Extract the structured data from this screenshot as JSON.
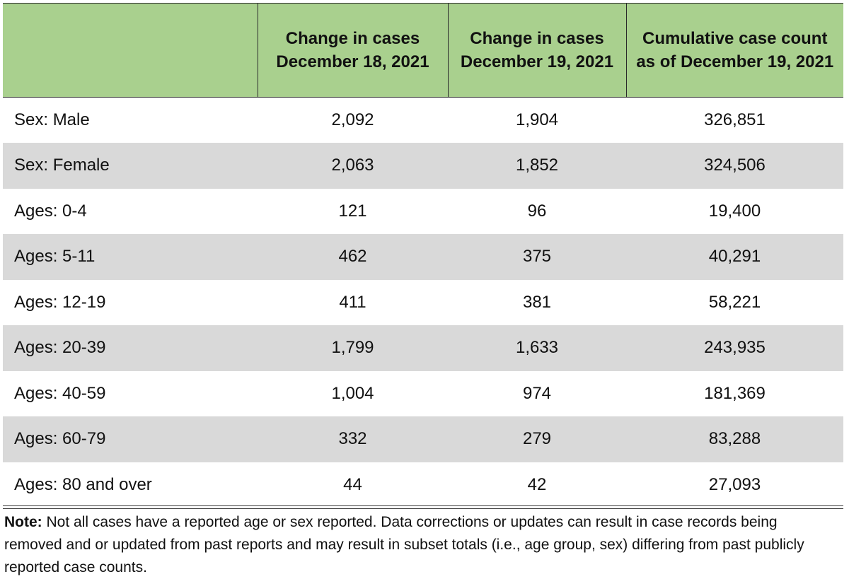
{
  "table": {
    "headers": [
      "",
      "Change in cases December 18, 2021",
      "Change in cases December 19, 2021",
      "Cumulative case count as of December 19, 2021"
    ],
    "rows": [
      {
        "label": "Sex: Male",
        "dec18": "2,092",
        "dec19": "1,904",
        "cumulative": "326,851"
      },
      {
        "label": "Sex: Female",
        "dec18": "2,063",
        "dec19": "1,852",
        "cumulative": "324,506"
      },
      {
        "label": "Ages: 0-4",
        "dec18": "121",
        "dec19": "96",
        "cumulative": "19,400"
      },
      {
        "label": "Ages: 5-11",
        "dec18": "462",
        "dec19": "375",
        "cumulative": "40,291"
      },
      {
        "label": "Ages: 12-19",
        "dec18": "411",
        "dec19": "381",
        "cumulative": "58,221"
      },
      {
        "label": "Ages: 20-39",
        "dec18": "1,799",
        "dec19": "1,633",
        "cumulative": "243,935"
      },
      {
        "label": "Ages: 40-59",
        "dec18": "1,004",
        "dec19": "974",
        "cumulative": "181,369"
      },
      {
        "label": "Ages: 60-79",
        "dec18": "332",
        "dec19": "279",
        "cumulative": "83,288"
      },
      {
        "label": "Ages: 80 and over",
        "dec18": "44",
        "dec19": "42",
        "cumulative": "27,093"
      }
    ]
  },
  "note": {
    "label": "Note:",
    "text": " Not all cases have a reported age or sex reported. Data corrections or updates can result in case records being removed and or updated from past reports and may result in subset totals (i.e., age group, sex) differing from past publicly reported case counts."
  },
  "colors": {
    "header_bg": "#a9d08e",
    "shaded_row_bg": "#d9d9d9"
  }
}
